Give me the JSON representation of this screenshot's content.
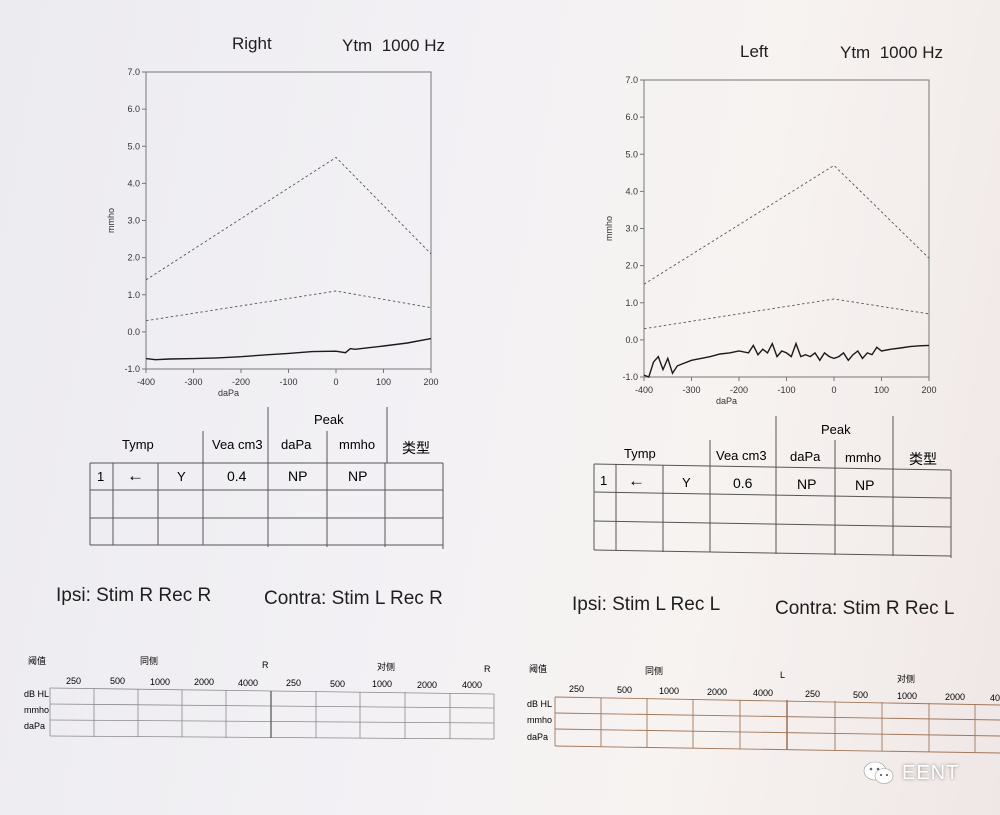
{
  "charts": [
    {
      "side": "Right",
      "probe": "Ytm",
      "freq": "1000 Hz",
      "xlabel": "daPa",
      "ylabel": "mmho",
      "type": "line",
      "x_ticks": [
        -400,
        -300,
        -200,
        -100,
        0,
        100,
        200
      ],
      "y_ticks": [
        -1.0,
        0.0,
        1.0,
        2.0,
        3.0,
        4.0,
        5.0,
        6.0,
        7.0
      ],
      "xlim": [
        -400,
        200
      ],
      "ylim": [
        -1,
        7
      ],
      "series": [
        {
          "style": "dashed",
          "x": [
            -400,
            0,
            200
          ],
          "y": [
            1.4,
            4.7,
            2.1
          ]
        },
        {
          "style": "dashed",
          "x": [
            -400,
            0,
            200
          ],
          "y": [
            0.3,
            1.1,
            0.65
          ]
        },
        {
          "style": "solid",
          "x": [
            -400,
            -380,
            -350,
            -300,
            -250,
            -200,
            -150,
            -100,
            -50,
            0,
            20,
            30,
            40,
            60,
            100,
            150,
            200
          ],
          "y": [
            -0.72,
            -0.75,
            -0.73,
            -0.72,
            -0.7,
            -0.67,
            -0.62,
            -0.58,
            -0.53,
            -0.52,
            -0.56,
            -0.45,
            -0.47,
            -0.44,
            -0.38,
            -0.3,
            -0.18
          ]
        }
      ]
    },
    {
      "side": "Left",
      "probe": "Ytm",
      "freq": "1000 Hz",
      "xlabel": "daPa",
      "ylabel": "mmho",
      "type": "line",
      "x_ticks": [
        -400,
        -300,
        -200,
        -100,
        0,
        100,
        200
      ],
      "y_ticks": [
        -1.0,
        0.0,
        1.0,
        2.0,
        3.0,
        4.0,
        5.0,
        6.0,
        7.0
      ],
      "xlim": [
        -400,
        200
      ],
      "ylim": [
        -1,
        7
      ],
      "series": [
        {
          "style": "dashed",
          "x": [
            -400,
            0,
            200
          ],
          "y": [
            1.5,
            4.7,
            2.2
          ]
        },
        {
          "style": "dashed",
          "x": [
            -400,
            0,
            200
          ],
          "y": [
            0.3,
            1.1,
            0.7
          ]
        },
        {
          "style": "solid",
          "x": [
            -400,
            -390,
            -380,
            -370,
            -360,
            -350,
            -340,
            -330,
            -320,
            -300,
            -280,
            -260,
            -240,
            -220,
            -200,
            -180,
            -170,
            -160,
            -150,
            -140,
            -130,
            -120,
            -110,
            -100,
            -90,
            -80,
            -70,
            -60,
            -50,
            -40,
            -30,
            -20,
            -10,
            0,
            10,
            20,
            30,
            40,
            50,
            60,
            70,
            80,
            90,
            100,
            120,
            140,
            160,
            180,
            200
          ],
          "y": [
            -0.95,
            -1.0,
            -0.6,
            -0.45,
            -0.8,
            -0.5,
            -0.9,
            -0.7,
            -0.65,
            -0.55,
            -0.5,
            -0.45,
            -0.38,
            -0.35,
            -0.3,
            -0.35,
            -0.15,
            -0.4,
            -0.25,
            -0.35,
            -0.1,
            -0.45,
            -0.3,
            -0.35,
            -0.45,
            -0.1,
            -0.45,
            -0.4,
            -0.45,
            -0.35,
            -0.55,
            -0.35,
            -0.45,
            -0.5,
            -0.45,
            -0.35,
            -0.55,
            -0.4,
            -0.3,
            -0.5,
            -0.35,
            -0.4,
            -0.2,
            -0.3,
            -0.25,
            -0.22,
            -0.18,
            -0.16,
            -0.15
          ]
        }
      ]
    }
  ],
  "result_tables": [
    {
      "peak_label": "Peak",
      "tymp_label": "Tymp",
      "vea_label": "Vea cm3",
      "dapa_label": "daPa",
      "mmho_label": "mmho",
      "type_label": "类型",
      "row_no": "1",
      "arrow": "←",
      "y_mark": "Y",
      "vea": "0.4",
      "dapa": "NP",
      "mmho": "NP"
    },
    {
      "peak_label": "Peak",
      "tymp_label": "Tymp",
      "vea_label": "Vea cm3",
      "dapa_label": "daPa",
      "mmho_label": "mmho",
      "type_label": "类型",
      "row_no": "1",
      "arrow": "←",
      "y_mark": "Y",
      "vea": "0.6",
      "dapa": "NP",
      "mmho": "NP"
    }
  ],
  "reflex_setup": [
    {
      "ipsi": "Ipsi:  Stim R  Rec R",
      "contra": "Contra:  Stim L  Rec R"
    },
    {
      "ipsi": "Ipsi:  Stim L  Rec L",
      "contra": "Contra:  Stim R  Rec L"
    }
  ],
  "reflex_tables": [
    {
      "threshold_label": "阈值",
      "ipsi_label": "同侧",
      "contra_label": "对侧",
      "ear": "R",
      "freqs": [
        "250",
        "500",
        "1000",
        "2000",
        "4000"
      ],
      "row_labels": [
        "dB HL",
        "mmho",
        "daPa"
      ]
    },
    {
      "threshold_label": "阈值",
      "ipsi_label": "同侧",
      "contra_label": "对侧",
      "ear": "L",
      "freqs": [
        "250",
        "500",
        "1000",
        "2000",
        "4000"
      ],
      "row_labels": [
        "dB HL",
        "mmho",
        "daPa"
      ]
    }
  ],
  "watermark": {
    "text": "EENT",
    "icon": "wechat-icon"
  }
}
